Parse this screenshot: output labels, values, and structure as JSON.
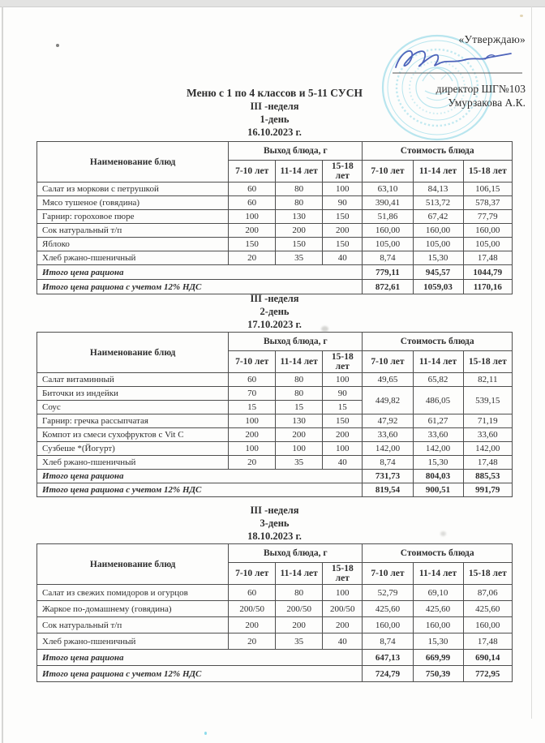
{
  "approval": {
    "approve_label": "«Утверждаю»",
    "director_title": "директор ШГ№103",
    "director_name": "Умурзакова А.К."
  },
  "doc": {
    "main_title": "Меню с 1 по 4 классов и 5-11 СУСН"
  },
  "stamp_color": "#8ed7e6",
  "signature_color": "#3f57b5",
  "sections": [
    {
      "week": "III -неделя",
      "day": "1-день",
      "date": "16.10.2023 г.",
      "table": {
        "name_header": "Наименование блюд",
        "output_header": "Выход блюда, г",
        "cost_header": "Стоимость блюда",
        "age_headers": [
          "7-10 лет",
          "11-14 лет",
          "15-18 лет"
        ],
        "rows": [
          {
            "name": "Салат из моркови с петрушкой",
            "out": [
              "60",
              "80",
              "100"
            ],
            "cost": [
              "63,10",
              "84,13",
              "106,15"
            ]
          },
          {
            "name": "Мясо тушеное (говядина)",
            "out": [
              "60",
              "80",
              "90"
            ],
            "cost": [
              "390,41",
              "513,72",
              "578,37"
            ]
          },
          {
            "name": "Гарнир: гороховое пюре",
            "out": [
              "100",
              "130",
              "150"
            ],
            "cost": [
              "51,86",
              "67,42",
              "77,79"
            ]
          },
          {
            "name": "Сок натуральный т/п",
            "out": [
              "200",
              "200",
              "200"
            ],
            "cost": [
              "160,00",
              "160,00",
              "160,00"
            ]
          },
          {
            "name": "Яблоко",
            "out": [
              "150",
              "150",
              "150"
            ],
            "cost": [
              "105,00",
              "105,00",
              "105,00"
            ]
          },
          {
            "name": "Хлеб ржано-пшеничный",
            "out": [
              "20",
              "35",
              "40"
            ],
            "cost": [
              "8,74",
              "15,30",
              "17,48"
            ]
          }
        ],
        "total_label": "Итого цена рациона",
        "total": [
          "779,11",
          "945,57",
          "1044,79"
        ],
        "total_vat_label": "Итого цена рациона с учетом 12% НДС",
        "total_vat": [
          "872,61",
          "1059,03",
          "1170,16"
        ]
      }
    },
    {
      "week": "III -неделя",
      "day": "2-день",
      "date": "17.10.2023 г.",
      "table": {
        "name_header": "Наименование блюд",
        "output_header": "Выход блюда, г",
        "cost_header": "Стоимость блюда",
        "age_headers": [
          "7-10 лет",
          "11-14 лет",
          "15-18 лет"
        ],
        "rows": [
          {
            "name": "Салат витаминный",
            "out": [
              "60",
              "80",
              "100"
            ],
            "cost": [
              "49,65",
              "65,82",
              "82,11"
            ]
          },
          {
            "name": "Биточки из индейки",
            "out": [
              "70",
              "80",
              "90"
            ],
            "cost": [
              "449,82",
              "486,05",
              "539,15"
            ],
            "cost_rowspan": 2
          },
          {
            "name": "Соус",
            "out": [
              "15",
              "15",
              "15"
            ],
            "cost": null
          },
          {
            "name": "Гарнир: гречка рассыпчатая",
            "out": [
              "100",
              "130",
              "150"
            ],
            "cost": [
              "47,92",
              "61,27",
              "71,19"
            ]
          },
          {
            "name": "Компот из смеси сухофруктов с Vit C",
            "out": [
              "200",
              "200",
              "200"
            ],
            "cost": [
              "33,60",
              "33,60",
              "33,60"
            ]
          },
          {
            "name": "Сузбеше *(Йогурт)",
            "out": [
              "100",
              "100",
              "100"
            ],
            "cost": [
              "142,00",
              "142,00",
              "142,00"
            ]
          },
          {
            "name": "Хлеб ржано-пшеничный",
            "out": [
              "20",
              "35",
              "40"
            ],
            "cost": [
              "8,74",
              "15,30",
              "17,48"
            ]
          }
        ],
        "total_label": "Итого цена рациона",
        "total": [
          "731,73",
          "804,03",
          "885,53"
        ],
        "total_vat_label": "Итого цена рациона с учетом 12% НДС",
        "total_vat": [
          "819,54",
          "900,51",
          "991,79"
        ]
      }
    },
    {
      "week": "III -неделя",
      "day": "3-день",
      "date": "18.10.2023 г.",
      "table": {
        "name_header": "Наименование блюд",
        "output_header": "Выход блюда, г",
        "cost_header": "Стоимость блюда",
        "age_headers": [
          "7-10 лет",
          "11-14 лет",
          "15-18 лет"
        ],
        "rows": [
          {
            "name": "Салат из свежих помидоров и огурцов",
            "out": [
              "60",
              "80",
              "100"
            ],
            "cost": [
              "52,79",
              "69,10",
              "87,06"
            ]
          },
          {
            "name": "Жаркое по-домашнему (говядина)",
            "out": [
              "200/50",
              "200/50",
              "200/50"
            ],
            "cost": [
              "425,60",
              "425,60",
              "425,60"
            ]
          },
          {
            "name": "Сок натуральный т/п",
            "out": [
              "200",
              "200",
              "200"
            ],
            "cost": [
              "160,00",
              "160,00",
              "160,00"
            ]
          },
          {
            "name": "Хлеб ржано-пшеничный",
            "out": [
              "20",
              "35",
              "40"
            ],
            "cost": [
              "8,74",
              "15,30",
              "17,48"
            ]
          }
        ],
        "total_label": "Итого цена рациона",
        "total": [
          "647,13",
          "669,99",
          "690,14"
        ],
        "total_vat_label": "Итого цена рациона с учетом 12% НДС",
        "total_vat": [
          "724,79",
          "750,39",
          "772,95"
        ]
      }
    }
  ]
}
